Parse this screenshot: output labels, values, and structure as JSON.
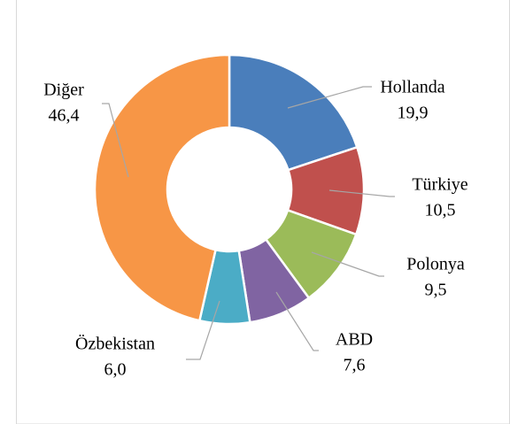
{
  "chart_data": {
    "type": "donut",
    "categories": [
      "Hollanda",
      "Türkiye",
      "Polonya",
      "ABD",
      "Özbekistan",
      "Diğer"
    ],
    "values": [
      19.9,
      10.5,
      9.5,
      7.6,
      6.0,
      46.4
    ],
    "value_labels": [
      "19,9",
      "10,5",
      "9,5",
      "7,6",
      "6,0",
      "46,4"
    ],
    "colors": [
      "#4a7ebb",
      "#c0504d",
      "#9bbb59",
      "#8064a2",
      "#4bacc6",
      "#f79646"
    ]
  }
}
